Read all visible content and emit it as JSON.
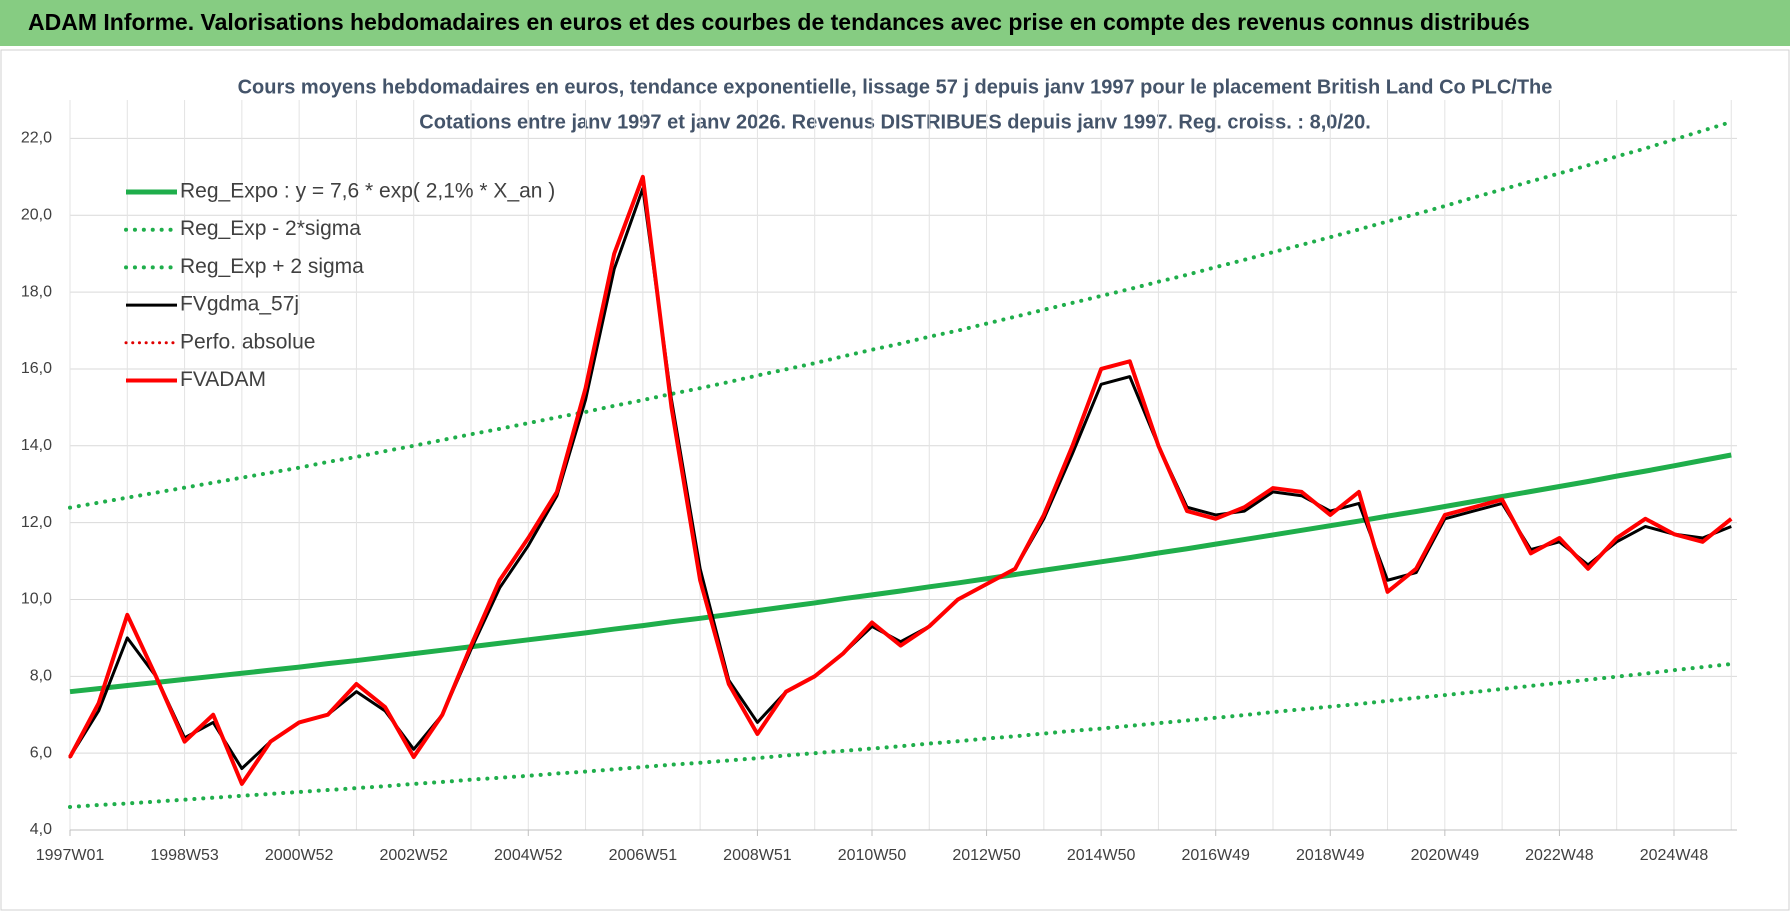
{
  "header": {
    "title": "ADAM Informe. Valorisations hebdomadaires en euros et des courbes de tendances avec prise en compte des revenus connus distribués"
  },
  "chart_data": {
    "type": "line",
    "title": "Cours moyens hebdomadaires en euros, tendance exponentielle, lissage 57 j depuis janv 1997 pour le placement British Land Co PLC/The",
    "subtitle": "Cotations entre janv 1997 et janv 2026. Revenus DISTRIBUES depuis janv 1997. Reg. croiss. : 8,0/20.",
    "categories": [
      "1997W01",
      null,
      null,
      null,
      "1998W53",
      null,
      null,
      null,
      "2000W52",
      null,
      null,
      null,
      "2002W52",
      null,
      null,
      null,
      "2004W52",
      null,
      null,
      null,
      "2006W51",
      null,
      null,
      null,
      "2008W51",
      null,
      null,
      null,
      "2010W50",
      null,
      null,
      null,
      "2012W50",
      null,
      null,
      null,
      "2014W50",
      null,
      null,
      null,
      "2016W49",
      null,
      null,
      null,
      "2018W49",
      null,
      null,
      null,
      "2020W49",
      null,
      null,
      null,
      "2022W48",
      null,
      null,
      null,
      "2024W48",
      null,
      null
    ],
    "ylim": [
      4,
      23
    ],
    "yticks": [
      {
        "value": 4,
        "label": "4,0"
      },
      {
        "value": 6,
        "label": "6,0"
      },
      {
        "value": 8,
        "label": "8,0"
      },
      {
        "value": 10,
        "label": "10,0"
      },
      {
        "value": 12,
        "label": "12,0"
      },
      {
        "value": 14,
        "label": "14,0"
      },
      {
        "value": 16,
        "label": "16,0"
      },
      {
        "value": 18,
        "label": "18,0"
      },
      {
        "value": 20,
        "label": "20,0"
      },
      {
        "value": 22,
        "label": "22,0"
      }
    ],
    "grid": true,
    "legend": "upper left",
    "series": [
      {
        "name": "Reg_Expo : y = 7,6 * exp( 2,1% *  X_an )",
        "color": "#1fae4b",
        "style": "solid",
        "width": 5,
        "values": [
          7.6,
          7.68,
          7.76,
          7.84,
          7.92,
          8.0,
          8.08,
          8.16,
          8.24,
          8.33,
          8.41,
          8.5,
          8.59,
          8.68,
          8.77,
          8.86,
          8.95,
          9.04,
          9.13,
          9.23,
          9.32,
          9.42,
          9.51,
          9.61,
          9.71,
          9.81,
          9.91,
          10.02,
          10.12,
          10.22,
          10.33,
          10.43,
          10.54,
          10.65,
          10.76,
          10.87,
          10.98,
          11.09,
          11.21,
          11.32,
          11.44,
          11.56,
          11.68,
          11.8,
          11.92,
          12.04,
          12.17,
          12.29,
          12.42,
          12.55,
          12.68,
          12.81,
          12.94,
          13.07,
          13.21,
          13.34,
          13.48,
          13.62,
          13.76
        ]
      },
      {
        "name": "Reg_Exp - 2*sigma",
        "color": "#1fae4b",
        "style": "dotted",
        "width": 4,
        "values": [
          4.6,
          4.65,
          4.69,
          4.74,
          4.79,
          4.84,
          4.89,
          4.94,
          4.99,
          5.04,
          5.09,
          5.14,
          5.2,
          5.25,
          5.31,
          5.36,
          5.41,
          5.47,
          5.52,
          5.58,
          5.64,
          5.7,
          5.75,
          5.81,
          5.87,
          5.94,
          6.0,
          6.06,
          6.12,
          6.18,
          6.25,
          6.31,
          6.38,
          6.44,
          6.51,
          6.58,
          6.64,
          6.71,
          6.78,
          6.85,
          6.92,
          6.99,
          7.07,
          7.14,
          7.21,
          7.28,
          7.36,
          7.44,
          7.51,
          7.59,
          7.67,
          7.75,
          7.83,
          7.91,
          7.99,
          8.07,
          8.16,
          8.24,
          8.32
        ]
      },
      {
        "name": "Reg_Exp + 2 sigma",
        "color": "#1fae4b",
        "style": "dotted",
        "width": 4,
        "values": [
          12.39,
          12.52,
          12.65,
          12.78,
          12.91,
          13.04,
          13.17,
          13.3,
          13.43,
          13.58,
          13.71,
          13.86,
          14.0,
          14.15,
          14.3,
          14.44,
          14.59,
          14.74,
          14.88,
          15.04,
          15.19,
          15.35,
          15.5,
          15.66,
          15.83,
          15.99,
          16.15,
          16.33,
          16.5,
          16.66,
          16.84,
          17.0,
          17.18,
          17.36,
          17.54,
          17.72,
          17.9,
          18.08,
          18.27,
          18.45,
          18.65,
          18.84,
          19.04,
          19.23,
          19.43,
          19.63,
          19.84,
          20.03,
          20.24,
          20.46,
          20.67,
          20.88,
          21.09,
          21.3,
          21.53,
          21.74,
          21.97,
          22.2,
          22.43
        ]
      },
      {
        "name": "FVgdma_57j",
        "color": "#000000",
        "style": "solid",
        "width": 3,
        "values": [
          5.9,
          7.1,
          9.0,
          8.0,
          6.4,
          6.8,
          5.6,
          6.3,
          6.8,
          7.0,
          7.6,
          7.1,
          6.1,
          7.0,
          8.7,
          10.3,
          11.4,
          12.7,
          15.2,
          18.6,
          20.7,
          15.2,
          10.8,
          7.9,
          6.8,
          7.6,
          8.0,
          8.6,
          9.3,
          8.9,
          9.3,
          10.0,
          10.4,
          10.8,
          12.1,
          13.8,
          15.6,
          15.8,
          14.0,
          12.4,
          12.2,
          12.3,
          12.8,
          12.7,
          12.3,
          12.5,
          10.5,
          10.7,
          12.1,
          12.3,
          12.5,
          11.3,
          11.5,
          10.9,
          11.5,
          11.9,
          11.7,
          11.6,
          11.9
        ]
      },
      {
        "name": "Perfo. absolue",
        "color": "#e00000",
        "style": "dotted",
        "width": 3,
        "values": [
          5.9,
          7.3,
          9.6,
          8.0,
          6.3,
          7.0,
          5.2,
          6.3,
          6.8,
          7.0,
          7.8,
          7.2,
          5.9,
          7.0,
          8.8,
          10.5,
          11.6,
          12.8,
          15.5,
          19.0,
          21.0,
          15.0,
          10.5,
          7.8,
          6.5,
          7.6,
          8.0,
          8.6,
          9.4,
          8.8,
          9.3,
          10.0,
          10.4,
          10.8,
          12.2,
          14.0,
          16.0,
          16.2,
          14.0,
          12.3,
          12.1,
          12.4,
          12.9,
          12.8,
          12.2,
          12.8,
          10.2,
          10.8,
          12.2,
          12.4,
          12.6,
          11.2,
          11.6,
          10.8,
          11.6,
          12.1,
          11.7,
          11.5,
          12.1
        ]
      },
      {
        "name": "FVADAM",
        "color": "#ff0000",
        "style": "solid",
        "width": 4,
        "values": [
          5.9,
          7.3,
          9.6,
          8.0,
          6.3,
          7.0,
          5.2,
          6.3,
          6.8,
          7.0,
          7.8,
          7.2,
          5.9,
          7.0,
          8.8,
          10.5,
          11.6,
          12.8,
          15.5,
          19.0,
          21.0,
          15.0,
          10.5,
          7.8,
          6.5,
          7.6,
          8.0,
          8.6,
          9.4,
          8.8,
          9.3,
          10.0,
          10.4,
          10.8,
          12.2,
          14.0,
          16.0,
          16.2,
          14.0,
          12.3,
          12.1,
          12.4,
          12.9,
          12.8,
          12.2,
          12.8,
          10.2,
          10.8,
          12.2,
          12.4,
          12.6,
          11.2,
          11.6,
          10.8,
          11.6,
          12.1,
          11.7,
          11.5,
          12.1
        ]
      }
    ]
  }
}
